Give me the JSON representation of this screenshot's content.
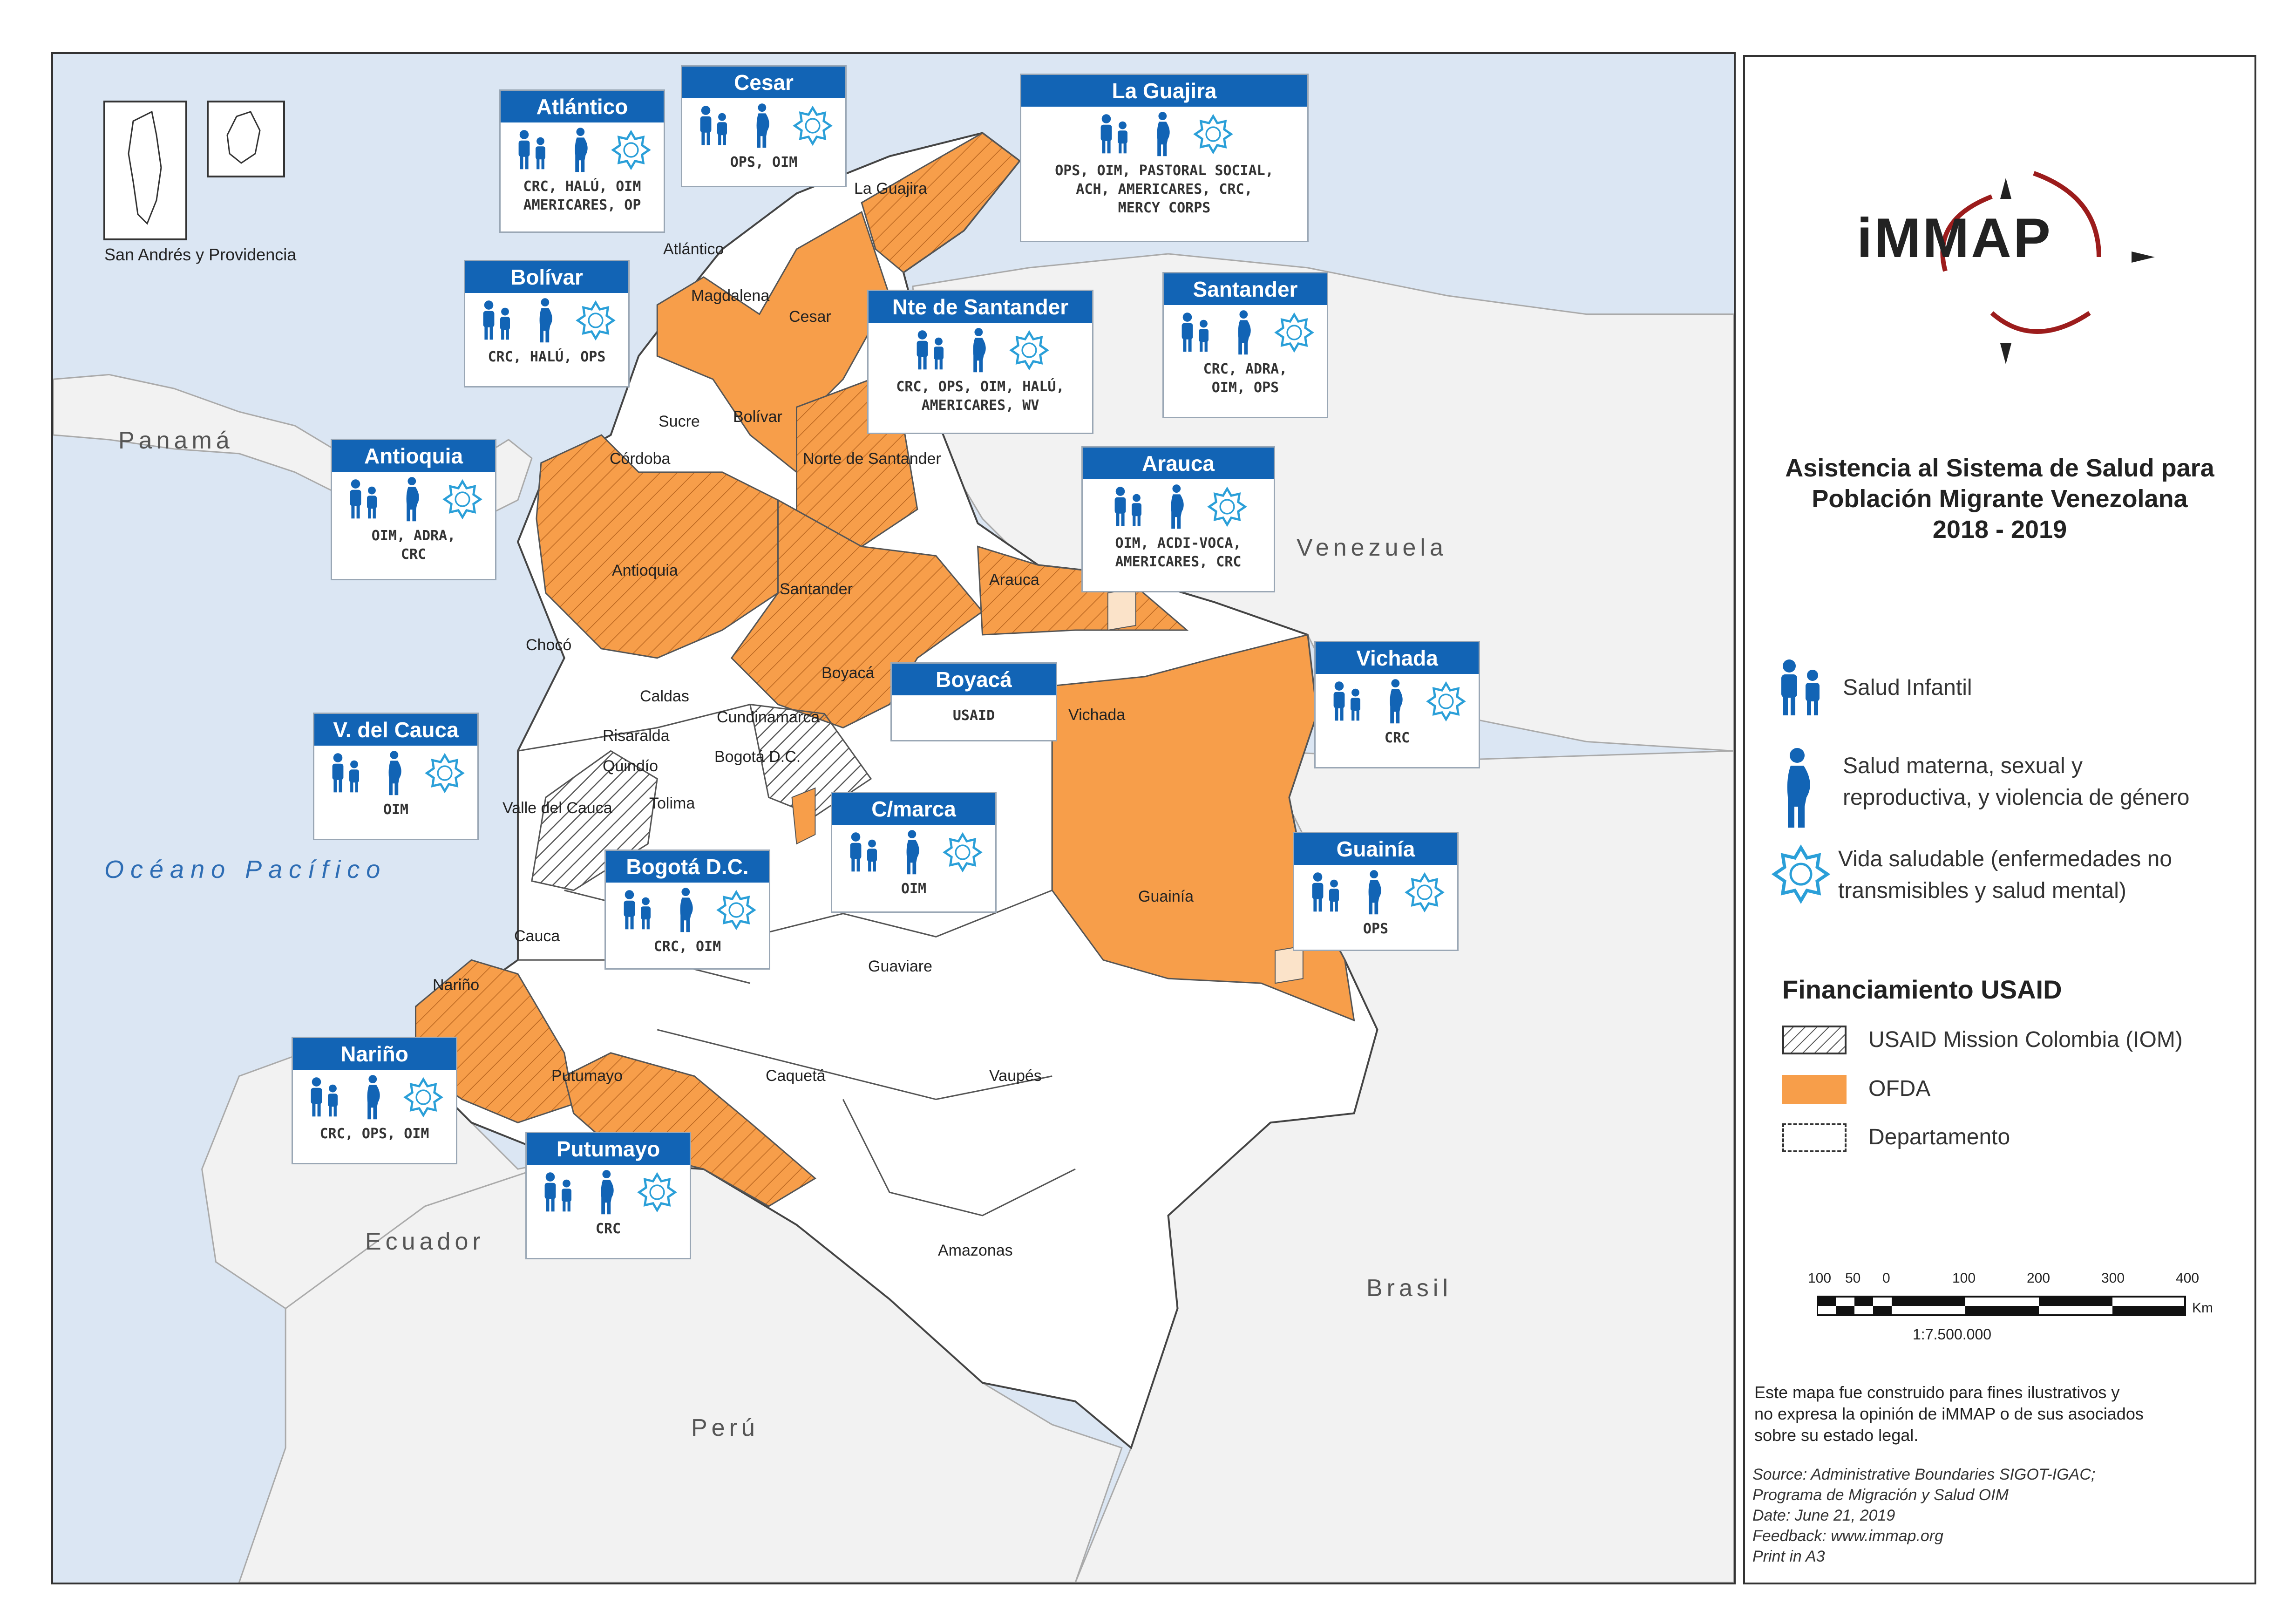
{
  "map": {
    "inset_caption": "San  Andrés y Providencia",
    "countries": [
      "Panamá",
      "Venezuela",
      "Ecuador",
      "Brasil",
      "Perú"
    ],
    "ocean": "Océano Pacífico",
    "departments": [
      "La Guajira",
      "Atlántico",
      "Magdalena",
      "Cesar",
      "Sucre",
      "Bolívar",
      "Córdoba",
      "Norte de Santander",
      "Antioquia",
      "Santander",
      "Arauca",
      "Chocó",
      "Boyacá",
      "Caldas",
      "Cundinamarca",
      "Risaralda",
      "Vichada",
      "Bogotá D.C.",
      "Quindío",
      "Tolima",
      "Valle del Cauca",
      "Guainía",
      "Cauca",
      "Guaviare",
      "Nariño",
      "Putumayo",
      "Caquetá",
      "Vaupés",
      "Amazonas"
    ],
    "boxes": [
      {
        "title": "Atlántico",
        "orgs": [
          "CRC, HALÚ, OIM",
          "AMERICARES, OP"
        ]
      },
      {
        "title": "Cesar",
        "orgs": [
          "OPS, OIM"
        ]
      },
      {
        "title": "La Guajira",
        "orgs": [
          "OPS, OIM, PASTORAL SOCIAL,",
          "ACH, AMERICARES, CRC,",
          "MERCY CORPS"
        ]
      },
      {
        "title": "Bolívar",
        "orgs": [
          "CRC, HALÚ, OPS"
        ]
      },
      {
        "title": "Nte de Santander",
        "orgs": [
          "CRC, OPS, OIM, HALÚ,",
          "AMERICARES, WV"
        ]
      },
      {
        "title": "Santander",
        "orgs": [
          "CRC, ADRA,",
          "OIM, OPS"
        ]
      },
      {
        "title": "Antioquia",
        "orgs": [
          "OIM, ADRA,",
          "CRC"
        ]
      },
      {
        "title": "Arauca",
        "orgs": [
          "OIM, ACDI-VOCA,",
          "AMERICARES, CRC"
        ]
      },
      {
        "title": "Boyacá",
        "orgs": [
          "USAID"
        ]
      },
      {
        "title": "Vichada",
        "orgs": [
          "CRC"
        ]
      },
      {
        "title": "V. del Cauca",
        "orgs": [
          "OIM"
        ]
      },
      {
        "title": "C/marca",
        "orgs": [
          "OIM"
        ]
      },
      {
        "title": "Bogotá D.C.",
        "orgs": [
          "CRC, OIM"
        ]
      },
      {
        "title": "Guainía",
        "orgs": [
          "OPS"
        ]
      },
      {
        "title": "Nariño",
        "orgs": [
          "CRC, OPS, OIM"
        ]
      },
      {
        "title": "Putumayo",
        "orgs": [
          "CRC"
        ]
      }
    ]
  },
  "legend": {
    "logo": "iMMAP",
    "title_lines": [
      "Asistencia al Sistema de Salud para",
      "Población Migrante Venezolana",
      "2018 - 2019"
    ],
    "icons": [
      {
        "icon": "child-health-icon",
        "lines": [
          "Salud Infantil"
        ]
      },
      {
        "icon": "pregnant-woman-icon",
        "lines": [
          "Salud materna, sexual y",
          "reproductiva, y violencia de género"
        ]
      },
      {
        "icon": "healthy-life-icon",
        "lines": [
          "Vida saludable (enfermedades no",
          "transmisibles y salud mental)"
        ]
      }
    ],
    "funding_title": "Financiamiento USAID",
    "funding": [
      {
        "label": "USAID Mission Colombia (IOM)",
        "style": "hatched"
      },
      {
        "label": "OFDA",
        "style": "#f79e4a"
      },
      {
        "label": "Departamento",
        "style": "dashed"
      }
    ],
    "scale": {
      "ticks": [
        "100",
        "50",
        "0",
        "100",
        "200",
        "300",
        "400"
      ],
      "unit": "Km",
      "ratio": "1:7.500.000"
    },
    "disclaimer": [
      "Este mapa fue construido para fines ilustrativos y",
      "no expresa la opinión de iMMAP o de sus asociados",
      "sobre su estado legal."
    ],
    "source": [
      "Source: Administrative Boundaries SIGOT-IGAC;",
      "Programa de Migración y Salud OIM",
      "Date: June 21, 2019",
      "Feedback: www.immap.org",
      "Print in A3"
    ]
  },
  "colors": {
    "ofda": "#f79e4a",
    "box_header": "#1264b5",
    "icon_blue": "#1264b5",
    "icon_light": "#2a9fd8",
    "sea": "#dbe6f3",
    "land": "#f2f2f2"
  }
}
